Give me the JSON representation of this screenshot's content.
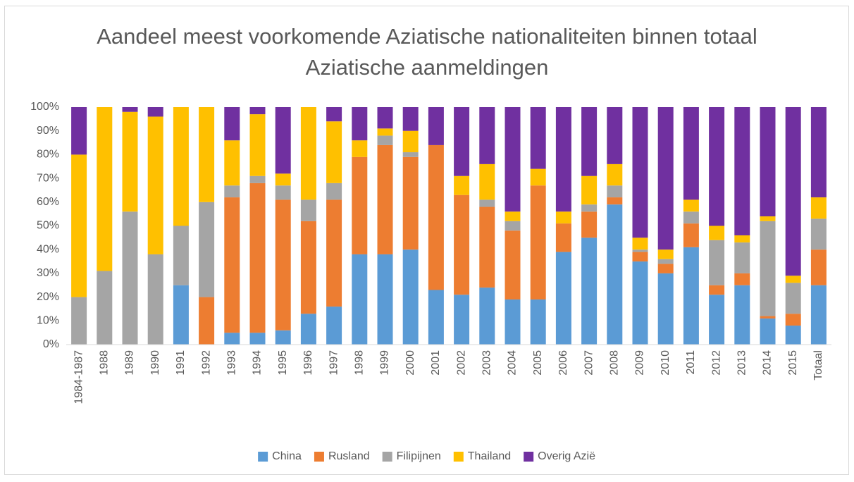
{
  "chart_data": {
    "type": "stacked_bar",
    "title": "Aandeel meest voorkomende Aziatische nationaliteiten binnen totaal Aziatische aanmeldingen",
    "categories": [
      "1984-1987",
      "1988",
      "1989",
      "1990",
      "1991",
      "1992",
      "1993",
      "1994",
      "1995",
      "1996",
      "1997",
      "1998",
      "1999",
      "2000",
      "2001",
      "2002",
      "2003",
      "2004",
      "2005",
      "2006",
      "2007",
      "2008",
      "2009",
      "2010",
      "2011",
      "2012",
      "2013",
      "2014",
      "2015",
      "Totaal"
    ],
    "series": [
      {
        "name": "China",
        "color": "#5b9bd5",
        "values": [
          0,
          0,
          0,
          0,
          25,
          0,
          5,
          5,
          6,
          13,
          16,
          38,
          38,
          40,
          23,
          21,
          24,
          19,
          19,
          39,
          45,
          59,
          35,
          30,
          41,
          21,
          25,
          11,
          8,
          25
        ]
      },
      {
        "name": "Rusland",
        "color": "#ed7d31",
        "values": [
          0,
          0,
          0,
          0,
          0,
          20,
          57,
          63,
          55,
          39,
          45,
          41,
          46,
          39,
          61,
          42,
          34,
          29,
          48,
          12,
          11,
          3,
          4,
          4,
          10,
          4,
          5,
          1,
          5,
          15
        ]
      },
      {
        "name": "Filipijnen",
        "color": "#a5a5a5",
        "values": [
          20,
          31,
          56,
          38,
          25,
          40,
          5,
          3,
          6,
          9,
          7,
          0,
          4,
          2,
          0,
          0,
          3,
          4,
          0,
          0,
          3,
          5,
          1,
          2,
          5,
          19,
          13,
          40,
          13,
          13
        ]
      },
      {
        "name": "Thailand",
        "color": "#ffc000",
        "values": [
          60,
          69,
          42,
          58,
          50,
          40,
          19,
          26,
          5,
          39,
          26,
          7,
          3,
          9,
          0,
          8,
          15,
          4,
          7,
          5,
          12,
          9,
          5,
          4,
          5,
          6,
          3,
          2,
          3,
          9
        ]
      },
      {
        "name": "Overig Azië",
        "color": "#7030a0",
        "values": [
          20,
          0,
          2,
          4,
          0,
          0,
          14,
          3,
          28,
          0,
          6,
          14,
          9,
          10,
          16,
          29,
          24,
          44,
          26,
          44,
          29,
          24,
          55,
          60,
          39,
          50,
          54,
          46,
          71,
          38
        ]
      }
    ],
    "ylim": [
      0,
      100
    ],
    "yticks": [
      {
        "value": 0,
        "label": "0%"
      },
      {
        "value": 10,
        "label": "10%"
      },
      {
        "value": 20,
        "label": "20%"
      },
      {
        "value": 30,
        "label": "30%"
      },
      {
        "value": 40,
        "label": "40%"
      },
      {
        "value": 50,
        "label": "50%"
      },
      {
        "value": 60,
        "label": "60%"
      },
      {
        "value": 70,
        "label": "70%"
      },
      {
        "value": 80,
        "label": "80%"
      },
      {
        "value": 90,
        "label": "90%"
      },
      {
        "value": 100,
        "label": "100%"
      }
    ],
    "grid": false,
    "legend": "bottom"
  }
}
